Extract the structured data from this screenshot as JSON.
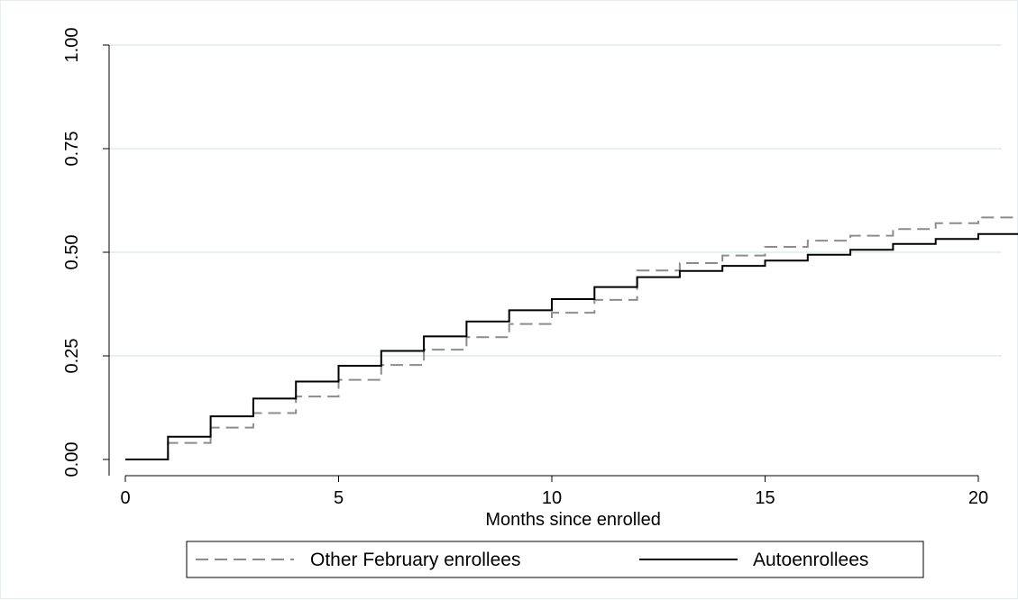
{
  "chart_data": {
    "type": "line",
    "title": "",
    "xlabel": "Months since enrolled",
    "ylabel": "",
    "xlim": [
      0,
      21
    ],
    "ylim": [
      0,
      1
    ],
    "x_ticks": [
      0,
      5,
      10,
      15,
      20
    ],
    "x_tick_labels": [
      "0",
      "5",
      "10",
      "15",
      "20"
    ],
    "y_ticks": [
      0,
      0.25,
      0.5,
      0.75,
      1
    ],
    "y_tick_labels": [
      "0.00",
      "0.25",
      "0.50",
      "0.75",
      "1.00"
    ],
    "grid": "horizontal",
    "legend_position": "bottom",
    "step": true,
    "x": [
      0,
      1,
      2,
      3,
      4,
      5,
      6,
      7,
      8,
      9,
      10,
      11,
      12,
      13,
      14,
      15,
      16,
      17,
      18,
      19,
      20,
      21
    ],
    "series": [
      {
        "name": "Other February enrollees",
        "style": "dashed",
        "color": "#8c8c8c",
        "values": [
          0,
          0.04,
          0.077,
          0.112,
          0.152,
          0.192,
          0.228,
          0.265,
          0.295,
          0.327,
          0.354,
          0.385,
          0.456,
          0.474,
          0.492,
          0.513,
          0.528,
          0.54,
          0.556,
          0.57,
          0.584,
          0.598
        ]
      },
      {
        "name": "Autoenrollees",
        "style": "solid",
        "color": "#000000",
        "values": [
          0,
          0.055,
          0.104,
          0.147,
          0.188,
          0.226,
          0.262,
          0.297,
          0.333,
          0.36,
          0.387,
          0.416,
          0.44,
          0.455,
          0.467,
          0.48,
          0.494,
          0.506,
          0.52,
          0.532,
          0.544,
          0.556
        ]
      }
    ]
  }
}
